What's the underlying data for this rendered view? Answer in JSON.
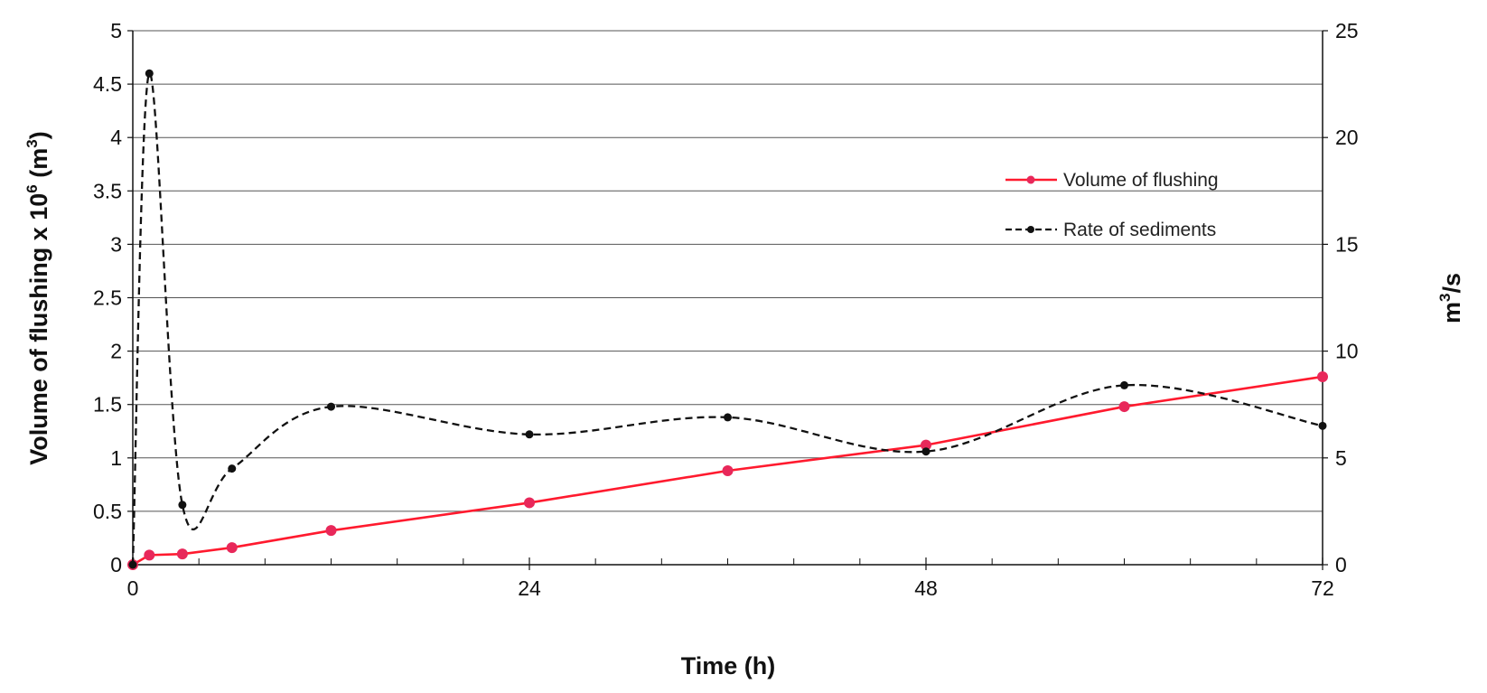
{
  "chart_data": {
    "type": "line",
    "x_ticks": [
      "0",
      "24",
      "48",
      "72"
    ],
    "y_left_ticks": [
      "0",
      "0.5",
      "1",
      "1.5",
      "2",
      "2.5",
      "3",
      "3.5",
      "4",
      "4.5",
      "5"
    ],
    "y_right_ticks": [
      "0",
      "5",
      "10",
      "15",
      "20",
      "25"
    ],
    "xlabel": "Time  (h)",
    "ylabel_left": {
      "main": "Volume of flushing  x 10",
      "sup1": "6",
      "unit_open": "  (m",
      "sup2": "3",
      "unit_close": ")"
    },
    "ylabel_right": {
      "main": "m",
      "sup": "3",
      "tail": "/s"
    },
    "xlim": [
      0,
      72
    ],
    "ylim_left": [
      0,
      5
    ],
    "ylim_right": [
      0,
      25
    ],
    "grid": "horizontal",
    "legend_position": "right",
    "series": [
      {
        "name": "Volume of flushing",
        "axis": "left",
        "color": "#ff1a2e",
        "marker_color": "#e8285a",
        "style": "solid",
        "x": [
          0,
          1,
          3,
          6,
          12,
          24,
          36,
          48,
          60,
          72
        ],
        "y": [
          0,
          0.09,
          0.1,
          0.16,
          0.32,
          0.58,
          0.88,
          1.12,
          1.48,
          1.76
        ]
      },
      {
        "name": "Rate of sediments",
        "axis": "right",
        "color": "#111111",
        "marker_color": "#111111",
        "style": "dashed",
        "x": [
          0,
          1,
          3,
          6,
          12,
          24,
          36,
          48,
          60,
          72
        ],
        "y": [
          0,
          23,
          2.8,
          4.5,
          7.4,
          6.1,
          6.9,
          5.3,
          8.4,
          6.5
        ]
      }
    ]
  }
}
